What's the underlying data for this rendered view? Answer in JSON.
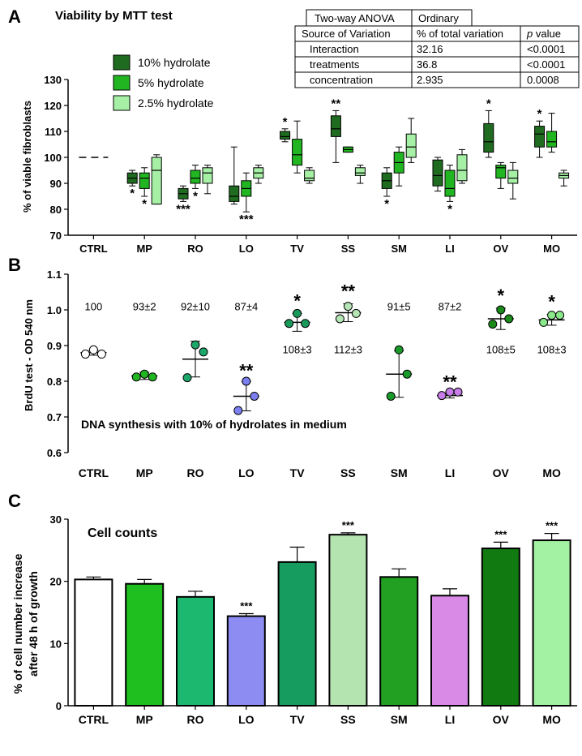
{
  "chart_data": [
    {
      "panel": "A",
      "type": "box",
      "title": "Viability by MTT test",
      "ylabel": "% of viable fibroblasts",
      "ylim": [
        70,
        130
      ],
      "yticks": [
        70,
        80,
        90,
        100,
        110,
        120,
        130
      ],
      "categories": [
        "CTRL",
        "MP",
        "RO",
        "LO",
        "TV",
        "SS",
        "SM",
        "LI",
        "OV",
        "MO"
      ],
      "control_value": 100,
      "colors": {
        "10% hydrolate": "#1f6b1f",
        "5% hydrolate": "#22b522",
        "2.5% hydrolate": "#a6f0a6"
      },
      "legend": [
        "10% hydrolate",
        "5% hydrolate",
        "2.5% hydrolate"
      ],
      "series": [
        {
          "name": "10% hydrolate",
          "boxes": [
            null,
            {
              "min": 89,
              "q1": 90,
              "median": 92,
              "q3": 94,
              "max": 95
            },
            {
              "min": 83,
              "q1": 84,
              "median": 86,
              "q3": 88,
              "max": 89
            },
            {
              "min": 82,
              "q1": 83,
              "median": 85,
              "q3": 89,
              "max": 104
            },
            {
              "min": 106,
              "q1": 107,
              "median": 108,
              "q3": 110,
              "max": 111
            },
            {
              "min": 98,
              "q1": 108,
              "median": 111,
              "q3": 116,
              "max": 118
            },
            {
              "min": 85,
              "q1": 88,
              "median": 91,
              "q3": 94,
              "max": 96
            },
            {
              "min": 87,
              "q1": 89,
              "median": 93,
              "q3": 99,
              "max": 100
            },
            {
              "min": 100,
              "q1": 102,
              "median": 106,
              "q3": 113,
              "max": 118
            },
            {
              "min": 100,
              "q1": 104,
              "median": 109,
              "q3": 112,
              "max": 114
            }
          ]
        },
        {
          "name": "5% hydrolate",
          "boxes": [
            null,
            {
              "min": 85,
              "q1": 88,
              "median": 92,
              "q3": 94,
              "max": 96
            },
            {
              "min": 88,
              "q1": 90,
              "median": 92,
              "q3": 95,
              "max": 97
            },
            {
              "min": 79,
              "q1": 85,
              "median": 88,
              "q3": 91,
              "max": 94
            },
            {
              "min": 94,
              "q1": 97,
              "median": 101,
              "q3": 107,
              "max": 114
            },
            {
              "min": 102,
              "q1": 102,
              "median": 103,
              "q3": 104,
              "max": 104
            },
            {
              "min": 89,
              "q1": 94,
              "median": 98,
              "q3": 102,
              "max": 104
            },
            {
              "min": 83,
              "q1": 85,
              "median": 88,
              "q3": 95,
              "max": 97
            },
            {
              "min": 88,
              "q1": 92,
              "median": 96,
              "q3": 97,
              "max": 98
            },
            {
              "min": 102,
              "q1": 104,
              "median": 106,
              "q3": 110,
              "max": 117
            }
          ]
        },
        {
          "name": "2.5% hydrolate",
          "boxes": [
            null,
            {
              "min": 82,
              "q1": 82,
              "median": 95,
              "q3": 100,
              "max": 101
            },
            {
              "min": 86,
              "q1": 90,
              "median": 94,
              "q3": 96,
              "max": 97
            },
            {
              "min": 90,
              "q1": 92,
              "median": 94,
              "q3": 96,
              "max": 97
            },
            {
              "min": 90,
              "q1": 91,
              "median": 92,
              "q3": 95,
              "max": 96
            },
            {
              "min": 90,
              "q1": 93,
              "median": 94,
              "q3": 96,
              "max": 97
            },
            {
              "min": 98,
              "q1": 100,
              "median": 104,
              "q3": 109,
              "max": 115
            },
            {
              "min": 90,
              "q1": 91,
              "median": 95,
              "q3": 101,
              "max": 103
            },
            {
              "min": 84,
              "q1": 90,
              "median": 92,
              "q3": 95,
              "max": 98
            },
            {
              "min": 89,
              "q1": 92,
              "median": 93,
              "q3": 94,
              "max": 95
            }
          ]
        }
      ],
      "annotations": [
        {
          "category": "MP",
          "series": "10% hydrolate",
          "text": "*",
          "where": "below"
        },
        {
          "category": "MP",
          "series": "5% hydrolate",
          "text": "*",
          "where": "below"
        },
        {
          "category": "RO",
          "series": "10% hydrolate",
          "text": "***",
          "where": "below"
        },
        {
          "category": "RO",
          "series": "5% hydrolate",
          "text": "*",
          "where": "below"
        },
        {
          "category": "LO",
          "series": "5% hydrolate",
          "text": "***",
          "where": "below"
        },
        {
          "category": "TV",
          "series": "10% hydrolate",
          "text": "*",
          "where": "above"
        },
        {
          "category": "SS",
          "series": "10% hydrolate",
          "text": "**",
          "where": "above"
        },
        {
          "category": "SM",
          "series": "10% hydrolate",
          "text": "*",
          "where": "below"
        },
        {
          "category": "LI",
          "series": "5% hydrolate",
          "text": "*",
          "where": "below"
        },
        {
          "category": "OV",
          "series": "10% hydrolate",
          "text": "*",
          "where": "above"
        },
        {
          "category": "MO",
          "series": "10% hydrolate",
          "text": "*",
          "where": "above"
        }
      ],
      "anova_table": {
        "headers": [
          "Two-way ANOVA",
          "Ordinary"
        ],
        "columns": [
          "Source of Variation",
          "% of total variation",
          "p value"
        ],
        "p_prefix": "p",
        "p_suffix": " value",
        "rows": [
          [
            "Interaction",
            "32.16",
            "<0.0001"
          ],
          [
            "treatments",
            "36.8",
            "<0.0001"
          ],
          [
            "concentration",
            "2.935",
            "0.0008"
          ]
        ]
      }
    },
    {
      "panel": "B",
      "type": "scatter",
      "ylabel": "BrdU test - OD 540 nm",
      "ylim": [
        0.6,
        1.1
      ],
      "yticks": [
        "0.6",
        "0.7",
        "0.8",
        "0.9",
        "1.0",
        "1.1"
      ],
      "categories": [
        "CTRL",
        "MP",
        "RO",
        "LO",
        "TV",
        "SS",
        "SM",
        "LI",
        "OV",
        "MO"
      ],
      "annotation": "DNA synthesis with 10% of hydrolates in medium",
      "groups": [
        {
          "points": [
            0.888,
            0.876,
            0.876
          ],
          "mean": 0.88,
          "sd": 0.007,
          "color": "#ffffff",
          "top_label": "100",
          "sig": ""
        },
        {
          "points": [
            0.82,
            0.812,
            0.812
          ],
          "mean": 0.815,
          "sd": 0.01,
          "color": "#22b522",
          "top_label": "93±2",
          "sig": ""
        },
        {
          "points": [
            0.902,
            0.882,
            0.81
          ],
          "mean": 0.862,
          "sd": 0.05,
          "color": "#1ca86a",
          "top_label": "92±10",
          "sig": ""
        },
        {
          "points": [
            0.8,
            0.758,
            0.718
          ],
          "mean": 0.758,
          "sd": 0.041,
          "color": "#7b7ff0",
          "top_label": "87±4",
          "sig": "**"
        },
        {
          "points": [
            0.99,
            0.962,
            0.962
          ],
          "mean": 0.965,
          "sd": 0.025,
          "color": "#1a9a5a",
          "bottom_label": "108±3",
          "sig": "*"
        },
        {
          "points": [
            1.01,
            0.99,
            0.975
          ],
          "mean": 0.992,
          "sd": 0.025,
          "color": "#b5e4b5",
          "bottom_label": "112±3",
          "sig": "**"
        },
        {
          "points": [
            0.888,
            0.82,
            0.758
          ],
          "mean": 0.82,
          "sd": 0.065,
          "color": "#1a9a2a",
          "top_label": "91±5",
          "sig": ""
        },
        {
          "points": [
            0.77,
            0.77,
            0.76
          ],
          "mean": 0.76,
          "sd": 0.007,
          "color": "#c77de8",
          "top_label": "87±2",
          "sig": "**"
        },
        {
          "points": [
            1.0,
            0.975,
            0.96
          ],
          "mean": 0.975,
          "sd": 0.03,
          "color": "#1a8a1a",
          "bottom_label": "108±5",
          "sig": "*"
        },
        {
          "points": [
            0.985,
            0.985,
            0.965
          ],
          "mean": 0.972,
          "sd": 0.015,
          "color": "#8ae88a",
          "bottom_label": "108±3",
          "sig": "*"
        }
      ]
    },
    {
      "panel": "C",
      "type": "bar",
      "title": "Cell counts",
      "ylabel_line1": "% of cell number increase",
      "ylabel_line2": "after 48 h of growth",
      "ylim": [
        0,
        30
      ],
      "yticks": [
        0,
        10,
        20,
        30
      ],
      "categories": [
        "CTRL",
        "MP",
        "RO",
        "LO",
        "TV",
        "SS",
        "SM",
        "LI",
        "OV",
        "MO"
      ],
      "values": [
        20.3,
        19.6,
        17.5,
        14.4,
        23.1,
        27.5,
        20.7,
        17.7,
        25.3,
        26.6
      ],
      "errors": [
        0.4,
        0.7,
        0.9,
        0.4,
        2.4,
        0.3,
        1.3,
        1.1,
        1.0,
        1.1
      ],
      "colors": [
        "#ffffff",
        "#1fbf1f",
        "#1db870",
        "#8c8cf2",
        "#169c5e",
        "#b4e4b0",
        "#22a022",
        "#d98ae6",
        "#117a11",
        "#a3f2a3"
      ],
      "sig": [
        "",
        "",
        "",
        "***",
        "",
        "***",
        "",
        "",
        "***",
        "***"
      ]
    }
  ],
  "panel_letters": [
    "A",
    "B",
    "C"
  ]
}
